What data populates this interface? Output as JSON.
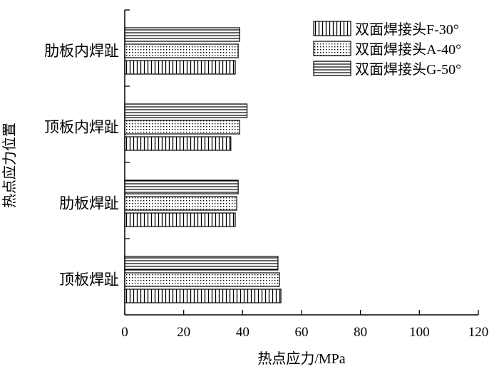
{
  "chart_data": {
    "type": "bar",
    "orientation": "horizontal",
    "categories": [
      "顶板焊趾",
      "肋板焊趾",
      "顶板内焊趾",
      "肋板内焊趾"
    ],
    "series": [
      {
        "name": "双面焊接头F-30°",
        "values": [
          53.0,
          37.5,
          36.0,
          37.5
        ],
        "pattern": "vertical-lines"
      },
      {
        "name": "双面焊接头A-40°",
        "values": [
          52.5,
          38.0,
          39.0,
          38.5
        ],
        "pattern": "dots"
      },
      {
        "name": "双面焊接头G-50°",
        "values": [
          52.0,
          38.5,
          41.5,
          39.0
        ],
        "pattern": "horizontal-lines"
      }
    ],
    "xlabel": "热点应力/MPa",
    "ylabel": "热点应力位置",
    "xlim": [
      0,
      120
    ],
    "xticks": [
      0,
      20,
      40,
      60,
      80,
      100,
      120
    ],
    "grid": false,
    "legend_position": "top-right",
    "colors": {
      "stroke": "#000000",
      "fill": "#ffffff"
    }
  }
}
